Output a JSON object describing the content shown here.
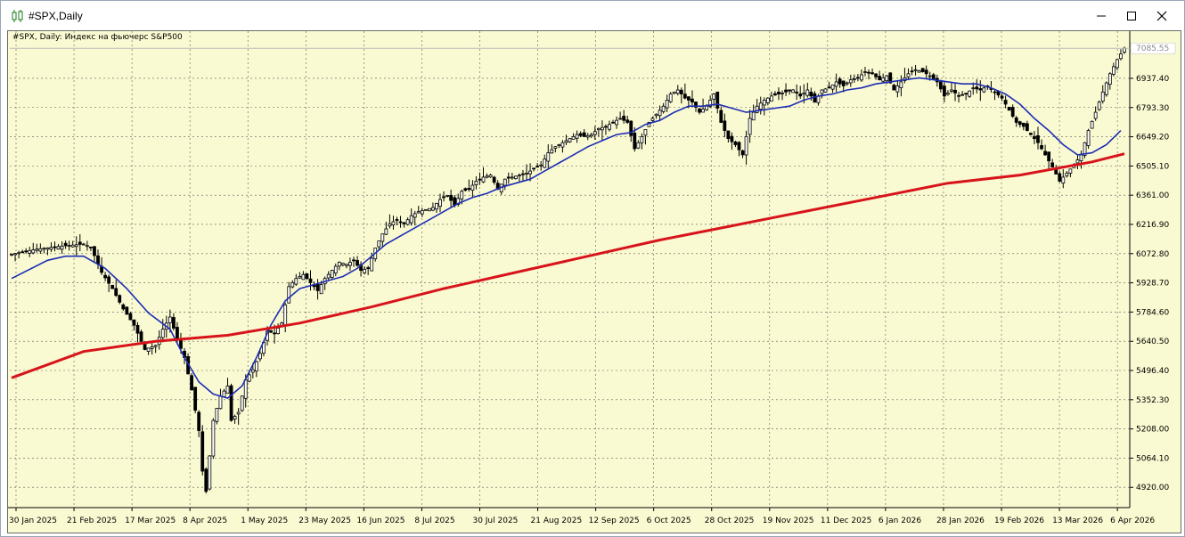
{
  "window": {
    "title": "#SPX,Daily",
    "icon": "candlestick-chart-icon",
    "minimize_icon": "minimize-icon",
    "maximize_icon": "maximize-icon",
    "close_icon": "close-icon"
  },
  "chart_data": {
    "type": "candlestick",
    "title": "#SPX, Daily: Индекс на фьючерс S&P500",
    "symbol": "#SPX",
    "timeframe": "Daily",
    "ylim": [
      4820,
      7170
    ],
    "y_ticks": [
      "4920.00",
      "5064.10",
      "5208.00",
      "5352.30",
      "5496.40",
      "5640.50",
      "5784.60",
      "5928.70",
      "6072.80",
      "6216.90",
      "6361.00",
      "6505.10",
      "6649.20",
      "6793.30",
      "6937.40"
    ],
    "current_price": "7085.55",
    "x_ticks": [
      "30 Jan 2025",
      "21 Feb 2025",
      "17 Mar 2025",
      "8 Apr 2025",
      "1 May 2025",
      "23 May 2025",
      "16 Jun 2025",
      "8 Jul 2025",
      "30 Jul 2025",
      "21 Aug 2025",
      "12 Sep 2025",
      "6 Oct 2025",
      "28 Oct 2025",
      "19 Nov 2025",
      "11 Dec 2025",
      "6 Jan 2026",
      "28 Jan 2026",
      "19 Feb 2026",
      "13 Mar 2026",
      "6 Apr 2026"
    ],
    "grid": true,
    "colors": {
      "background": "#fafad2",
      "candle": "#000000",
      "fast_ma": "#1c2db5",
      "slow_ma": "#d8141b",
      "grid": "#5a5a5a",
      "current_price_line": "#b9b9b9"
    },
    "close_path": [
      [
        0,
        6070
      ],
      [
        7,
        6095
      ],
      [
        14,
        6110
      ],
      [
        20,
        6120
      ],
      [
        22,
        6105
      ],
      [
        25,
        5980
      ],
      [
        28,
        5900
      ],
      [
        31,
        5800
      ],
      [
        34,
        5720
      ],
      [
        37,
        5600
      ],
      [
        40,
        5620
      ],
      [
        42,
        5700
      ],
      [
        44,
        5760
      ],
      [
        46,
        5650
      ],
      [
        48,
        5560
      ],
      [
        50,
        5400
      ],
      [
        52,
        5200
      ],
      [
        53,
        5000
      ],
      [
        54,
        4900
      ],
      [
        56,
        5250
      ],
      [
        58,
        5370
      ],
      [
        60,
        5420
      ],
      [
        61,
        5250
      ],
      [
        63,
        5290
      ],
      [
        65,
        5450
      ],
      [
        67,
        5500
      ],
      [
        69,
        5580
      ],
      [
        71,
        5690
      ],
      [
        73,
        5680
      ],
      [
        75,
        5730
      ],
      [
        77,
        5910
      ],
      [
        79,
        5950
      ],
      [
        81,
        5970
      ],
      [
        83,
        5930
      ],
      [
        85,
        5890
      ],
      [
        87,
        5950
      ],
      [
        89,
        5990
      ],
      [
        91,
        6030
      ],
      [
        93,
        6020
      ],
      [
        95,
        6040
      ],
      [
        97,
        5990
      ],
      [
        99,
        6000
      ],
      [
        101,
        6100
      ],
      [
        103,
        6170
      ],
      [
        105,
        6220
      ],
      [
        107,
        6240
      ],
      [
        109,
        6220
      ],
      [
        111,
        6260
      ],
      [
        113,
        6280
      ],
      [
        115,
        6290
      ],
      [
        117,
        6300
      ],
      [
        119,
        6340
      ],
      [
        121,
        6360
      ],
      [
        123,
        6310
      ],
      [
        125,
        6380
      ],
      [
        127,
        6390
      ],
      [
        129,
        6430
      ],
      [
        131,
        6450
      ],
      [
        133,
        6460
      ],
      [
        135,
        6390
      ],
      [
        137,
        6440
      ],
      [
        139,
        6450
      ],
      [
        141,
        6460
      ],
      [
        143,
        6470
      ],
      [
        145,
        6490
      ],
      [
        147,
        6510
      ],
      [
        149,
        6570
      ],
      [
        151,
        6600
      ],
      [
        153,
        6620
      ],
      [
        155,
        6640
      ],
      [
        157,
        6660
      ],
      [
        159,
        6650
      ],
      [
        161,
        6660
      ],
      [
        163,
        6690
      ],
      [
        165,
        6700
      ],
      [
        167,
        6720
      ],
      [
        169,
        6740
      ],
      [
        171,
        6720
      ],
      [
        173,
        6590
      ],
      [
        175,
        6650
      ],
      [
        177,
        6720
      ],
      [
        179,
        6760
      ],
      [
        181,
        6800
      ],
      [
        183,
        6860
      ],
      [
        185,
        6880
      ],
      [
        187,
        6840
      ],
      [
        189,
        6820
      ],
      [
        191,
        6770
      ],
      [
        193,
        6800
      ],
      [
        195,
        6860
      ],
      [
        197,
        6720
      ],
      [
        199,
        6640
      ],
      [
        201,
        6610
      ],
      [
        203,
        6560
      ],
      [
        205,
        6740
      ],
      [
        207,
        6800
      ],
      [
        209,
        6830
      ],
      [
        211,
        6850
      ],
      [
        213,
        6860
      ],
      [
        215,
        6870
      ],
      [
        217,
        6880
      ],
      [
        219,
        6850
      ],
      [
        221,
        6880
      ],
      [
        223,
        6820
      ],
      [
        225,
        6880
      ],
      [
        227,
        6890
      ],
      [
        229,
        6920
      ],
      [
        231,
        6900
      ],
      [
        233,
        6930
      ],
      [
        235,
        6940
      ],
      [
        237,
        6970
      ],
      [
        239,
        6960
      ],
      [
        241,
        6930
      ],
      [
        243,
        6950
      ],
      [
        245,
        6880
      ],
      [
        247,
        6920
      ],
      [
        249,
        6960
      ],
      [
        251,
        6980
      ],
      [
        253,
        6970
      ],
      [
        255,
        6950
      ],
      [
        257,
        6920
      ],
      [
        259,
        6850
      ],
      [
        261,
        6880
      ],
      [
        263,
        6850
      ],
      [
        265,
        6860
      ],
      [
        267,
        6890
      ],
      [
        269,
        6880
      ],
      [
        271,
        6900
      ],
      [
        273,
        6870
      ],
      [
        275,
        6840
      ],
      [
        277,
        6780
      ],
      [
        279,
        6720
      ],
      [
        281,
        6700
      ],
      [
        283,
        6660
      ],
      [
        285,
        6620
      ],
      [
        287,
        6560
      ],
      [
        289,
        6500
      ],
      [
        291,
        6430
      ],
      [
        293,
        6470
      ],
      [
        295,
        6510
      ],
      [
        297,
        6560
      ],
      [
        299,
        6680
      ],
      [
        301,
        6770
      ],
      [
        303,
        6870
      ],
      [
        305,
        6960
      ],
      [
        307,
        7030
      ],
      [
        309,
        7085.55
      ]
    ],
    "series": [
      {
        "name": "fast_ma",
        "values": [
          [
            0,
            5950
          ],
          [
            10,
            6040
          ],
          [
            15,
            6060
          ],
          [
            20,
            6060
          ],
          [
            26,
            6000
          ],
          [
            32,
            5900
          ],
          [
            38,
            5780
          ],
          [
            44,
            5700
          ],
          [
            48,
            5560
          ],
          [
            52,
            5440
          ],
          [
            56,
            5380
          ],
          [
            60,
            5360
          ],
          [
            64,
            5420
          ],
          [
            68,
            5560
          ],
          [
            72,
            5720
          ],
          [
            76,
            5840
          ],
          [
            80,
            5900
          ],
          [
            84,
            5920
          ],
          [
            88,
            5940
          ],
          [
            92,
            5960
          ],
          [
            96,
            6000
          ],
          [
            100,
            6060
          ],
          [
            104,
            6120
          ],
          [
            108,
            6160
          ],
          [
            112,
            6200
          ],
          [
            116,
            6240
          ],
          [
            120,
            6280
          ],
          [
            124,
            6320
          ],
          [
            128,
            6350
          ],
          [
            132,
            6370
          ],
          [
            136,
            6400
          ],
          [
            140,
            6420
          ],
          [
            144,
            6440
          ],
          [
            148,
            6480
          ],
          [
            152,
            6520
          ],
          [
            156,
            6560
          ],
          [
            160,
            6600
          ],
          [
            164,
            6630
          ],
          [
            168,
            6660
          ],
          [
            172,
            6670
          ],
          [
            176,
            6710
          ],
          [
            180,
            6730
          ],
          [
            184,
            6770
          ],
          [
            188,
            6800
          ],
          [
            192,
            6800
          ],
          [
            196,
            6810
          ],
          [
            200,
            6790
          ],
          [
            204,
            6770
          ],
          [
            208,
            6780
          ],
          [
            212,
            6790
          ],
          [
            216,
            6800
          ],
          [
            220,
            6830
          ],
          [
            224,
            6850
          ],
          [
            228,
            6860
          ],
          [
            232,
            6880
          ],
          [
            236,
            6890
          ],
          [
            240,
            6910
          ],
          [
            244,
            6920
          ],
          [
            248,
            6930
          ],
          [
            252,
            6940
          ],
          [
            256,
            6930
          ],
          [
            260,
            6920
          ],
          [
            264,
            6910
          ],
          [
            268,
            6910
          ],
          [
            272,
            6890
          ],
          [
            276,
            6860
          ],
          [
            280,
            6810
          ],
          [
            284,
            6740
          ],
          [
            288,
            6680
          ],
          [
            292,
            6610
          ],
          [
            296,
            6560
          ],
          [
            300,
            6570
          ],
          [
            304,
            6610
          ],
          [
            308,
            6680
          ]
        ]
      },
      {
        "name": "slow_ma",
        "values": [
          [
            0,
            5460
          ],
          [
            20,
            5590
          ],
          [
            40,
            5640
          ],
          [
            60,
            5670
          ],
          [
            80,
            5730
          ],
          [
            100,
            5810
          ],
          [
            120,
            5900
          ],
          [
            140,
            5980
          ],
          [
            160,
            6060
          ],
          [
            180,
            6140
          ],
          [
            200,
            6210
          ],
          [
            220,
            6280
          ],
          [
            240,
            6350
          ],
          [
            260,
            6420
          ],
          [
            280,
            6460
          ],
          [
            300,
            6525
          ],
          [
            309,
            6565
          ]
        ]
      }
    ]
  }
}
